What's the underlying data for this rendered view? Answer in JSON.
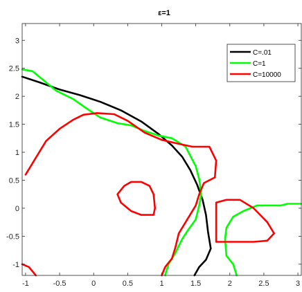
{
  "chart_data": {
    "type": "line",
    "title": "ε=1",
    "xlabel": "",
    "ylabel": "",
    "xlim": [
      -1.05,
      3.05
    ],
    "ylim": [
      -1.2,
      3.3
    ],
    "xticks": [
      -1,
      -0.5,
      0,
      0.5,
      1,
      1.5,
      2,
      2.5,
      3
    ],
    "yticks": [
      -1,
      -0.5,
      0,
      0.5,
      1,
      1.5,
      2,
      2.5,
      3
    ],
    "xtick_labels": [
      "-1",
      "-0.5",
      "0",
      "0.5",
      "1",
      "1.5",
      "2",
      "2.5",
      "3"
    ],
    "ytick_labels": [
      "-1",
      "-0.5",
      "0",
      "0.5",
      "1",
      "1.5",
      "2",
      "2.5",
      "3"
    ],
    "grid": false,
    "legend_position": "top-right",
    "series": [
      {
        "name": "C=.01",
        "color": "#000000",
        "segments": [
          [
            [
              -1.05,
              2.35
            ],
            [
              -0.8,
              2.25
            ],
            [
              -0.5,
              2.12
            ],
            [
              -0.2,
              2.02
            ],
            [
              0.1,
              1.9
            ],
            [
              0.4,
              1.75
            ],
            [
              0.7,
              1.55
            ],
            [
              0.95,
              1.33
            ],
            [
              1.15,
              1.12
            ],
            [
              1.3,
              0.92
            ],
            [
              1.42,
              0.68
            ],
            [
              1.52,
              0.42
            ],
            [
              1.6,
              0.15
            ],
            [
              1.65,
              -0.12
            ],
            [
              1.68,
              -0.42
            ],
            [
              1.72,
              -0.72
            ],
            [
              1.65,
              -0.92
            ],
            [
              1.55,
              -1.05
            ],
            [
              1.48,
              -1.2
            ]
          ]
        ]
      },
      {
        "name": "C=1",
        "color": "#00ff00",
        "segments": [
          [
            [
              -1.05,
              2.48
            ],
            [
              -0.9,
              2.45
            ],
            [
              -0.75,
              2.3
            ],
            [
              -0.55,
              2.1
            ],
            [
              -0.3,
              1.95
            ],
            [
              -0.1,
              1.78
            ],
            [
              0.1,
              1.62
            ],
            [
              0.35,
              1.52
            ],
            [
              0.55,
              1.48
            ],
            [
              0.75,
              1.38
            ],
            [
              0.95,
              1.3
            ],
            [
              1.15,
              1.25
            ],
            [
              1.35,
              1.1
            ],
            [
              1.5,
              0.75
            ],
            [
              1.55,
              0.52
            ],
            [
              1.58,
              0.25
            ],
            [
              1.55,
              0.05
            ],
            [
              1.5,
              -0.2
            ],
            [
              1.38,
              -0.4
            ],
            [
              1.3,
              -0.55
            ],
            [
              1.2,
              -0.8
            ],
            [
              1.1,
              -1.0
            ],
            [
              1.05,
              -1.2
            ]
          ],
          [
            [
              2.1,
              -1.2
            ],
            [
              2.05,
              -1.0
            ],
            [
              1.95,
              -0.85
            ],
            [
              1.93,
              -0.55
            ],
            [
              1.95,
              -0.35
            ],
            [
              2.05,
              -0.15
            ],
            [
              2.2,
              -0.05
            ],
            [
              2.4,
              0.05
            ],
            [
              2.6,
              0.05
            ],
            [
              2.75,
              0.05
            ],
            [
              2.85,
              0.08
            ],
            [
              2.95,
              0.08
            ],
            [
              3.05,
              0.08
            ]
          ]
        ]
      },
      {
        "name": "C=10000",
        "color": "#ff0000",
        "segments": [
          [
            [
              -1.0,
              0.6
            ],
            [
              -0.85,
              0.9
            ],
            [
              -0.7,
              1.2
            ],
            [
              -0.5,
              1.42
            ],
            [
              -0.3,
              1.58
            ],
            [
              -0.15,
              1.67
            ],
            [
              0.05,
              1.7
            ],
            [
              0.3,
              1.68
            ],
            [
              0.5,
              1.56
            ],
            [
              0.75,
              1.35
            ],
            [
              1.0,
              1.22
            ],
            [
              1.25,
              1.15
            ],
            [
              1.45,
              1.1
            ],
            [
              1.7,
              1.1
            ],
            [
              1.8,
              0.85
            ],
            [
              1.78,
              0.55
            ],
            [
              1.62,
              0.45
            ],
            [
              1.55,
              0.25
            ],
            [
              1.5,
              0.05
            ],
            [
              1.35,
              -0.25
            ],
            [
              1.25,
              -0.45
            ],
            [
              1.2,
              -0.7
            ],
            [
              1.15,
              -0.9
            ],
            [
              1.05,
              -1.05
            ],
            [
              1.0,
              -1.2
            ]
          ],
          [
            [
              0.45,
              0.4
            ],
            [
              0.55,
              0.47
            ],
            [
              0.7,
              0.47
            ],
            [
              0.82,
              0.4
            ],
            [
              0.88,
              0.25
            ],
            [
              0.9,
              0.0
            ],
            [
              0.88,
              -0.12
            ],
            [
              0.7,
              -0.12
            ],
            [
              0.55,
              -0.05
            ],
            [
              0.4,
              0.1
            ],
            [
              0.35,
              0.25
            ],
            [
              0.45,
              0.4
            ]
          ],
          [
            [
              1.8,
              -0.6
            ],
            [
              1.8,
              0.1
            ],
            [
              1.95,
              0.15
            ],
            [
              2.15,
              0.15
            ],
            [
              2.35,
              0.0
            ],
            [
              2.55,
              -0.25
            ],
            [
              2.65,
              -0.45
            ],
            [
              2.55,
              -0.58
            ],
            [
              2.35,
              -0.6
            ],
            [
              2.1,
              -0.6
            ],
            [
              1.8,
              -0.6
            ]
          ],
          [
            [
              -1.05,
              -1.0
            ],
            [
              -0.95,
              -1.05
            ],
            [
              -0.85,
              -1.2
            ]
          ]
        ]
      }
    ]
  }
}
